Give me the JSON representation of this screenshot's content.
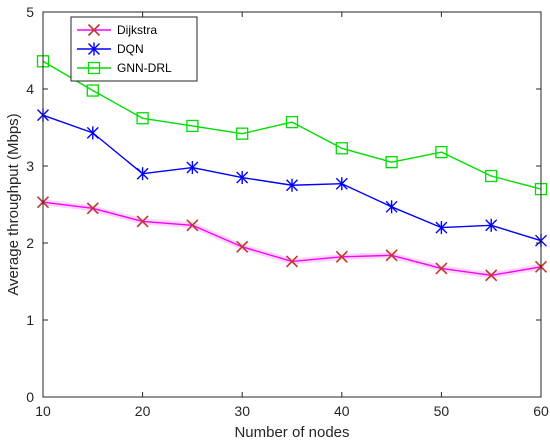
{
  "chart_data": {
    "type": "line",
    "title": "",
    "xlabel": "Number of nodes",
    "ylabel": "Average throughput (Mbps)",
    "xlim": [
      10,
      60
    ],
    "ylim": [
      0,
      5
    ],
    "x_ticks": [
      "10",
      "20",
      "30",
      "40",
      "50",
      "60"
    ],
    "y_ticks": [
      "0",
      "1",
      "2",
      "3",
      "4",
      "5"
    ],
    "x": [
      10,
      15,
      20,
      25,
      30,
      35,
      40,
      45,
      50,
      55,
      60
    ],
    "legend_position": "top-left",
    "grid": false,
    "series": [
      {
        "name": "Dijkstra",
        "color": "#ff00ff",
        "marker": "x",
        "marker_color": "#c0392b",
        "values": [
          2.53,
          2.45,
          2.28,
          2.23,
          1.95,
          1.76,
          1.82,
          1.84,
          1.67,
          1.58,
          1.69
        ]
      },
      {
        "name": "DQN",
        "color": "#0000ff",
        "marker": "asterisk",
        "marker_color": "#0000ff",
        "values": [
          3.66,
          3.43,
          2.9,
          2.98,
          2.85,
          2.75,
          2.77,
          2.47,
          2.2,
          2.23,
          2.03
        ]
      },
      {
        "name": "GNN-DRL",
        "color": "#00dd00",
        "marker": "square",
        "marker_color": "#00dd00",
        "values": [
          4.36,
          3.98,
          3.62,
          3.52,
          3.42,
          3.57,
          3.23,
          3.05,
          3.18,
          2.87,
          2.7
        ]
      }
    ]
  }
}
